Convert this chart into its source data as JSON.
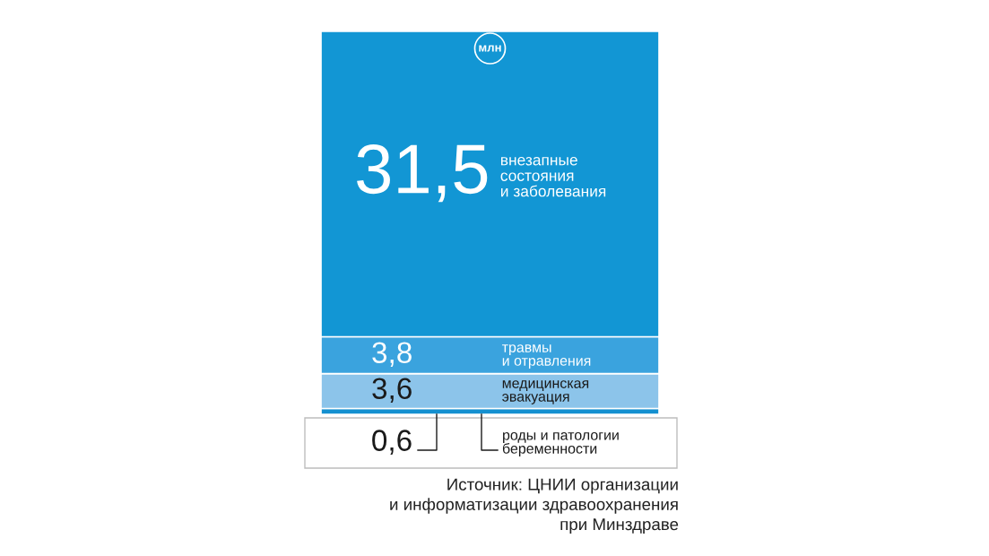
{
  "chart_data": {
    "type": "bar",
    "stacked": true,
    "tick_labels": false,
    "categories": [
      null
    ],
    "series": [
      {
        "name": "роды и патологии\nбеременности",
        "color": "#1490d0",
        "values": [
          0.6
        ],
        "value_labels": [
          "0,6"
        ]
      },
      {
        "name": "медицинская\nэвакуация",
        "color": "#8cc4ea",
        "values": [
          3.6
        ],
        "value_labels": [
          "3,6"
        ]
      },
      {
        "name": "травмы\nи отравления",
        "color": "#3aa3de",
        "values": [
          3.8
        ],
        "value_labels": [
          "3,8"
        ]
      },
      {
        "name": "внезапные\nсостояния\nи заболевания",
        "color": "#1296d4",
        "values": [
          31.5
        ],
        "value_labels": [
          "31,5"
        ]
      }
    ],
    "annotations": [
      "млн",
      "Источник: ЦНИИ организации\nи информатизации здравоохранения\nпри Минздраве"
    ]
  }
}
